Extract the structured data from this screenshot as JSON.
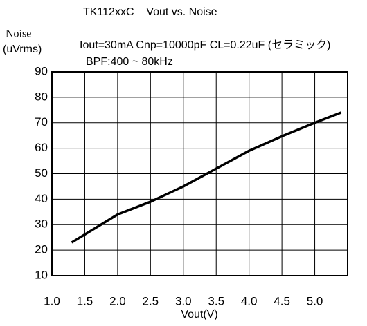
{
  "chart_data": {
    "type": "line",
    "title": "TK112xxC    Vout vs. Noise",
    "ylabel": "Noise",
    "ylabel_unit": "(uVrms)",
    "annotations": [
      "Iout=30mA Cnp=10000pF CL=0.22uF (セラミック)",
      "BPF:400 ~ 80kHz"
    ],
    "xlabel": "Vout(V)",
    "x": [
      1.3,
      2.0,
      2.5,
      3.0,
      3.5,
      4.0,
      4.5,
      5.0,
      5.4
    ],
    "values": [
      23,
      34,
      39,
      45,
      52,
      59,
      64.7,
      70,
      74
    ],
    "color": "#000000",
    "xlim": [
      1.0,
      5.5
    ],
    "xticks": [
      {
        "value": 1.0,
        "label": "1.0"
      },
      1.5,
      {
        "value": 2.0,
        "label": "2.0"
      },
      2.5,
      {
        "value": 3.0,
        "label": "3.0"
      },
      3.5,
      {
        "value": 4.0,
        "label": "4.0"
      },
      4.5,
      {
        "value": 5.0,
        "label": "5.0"
      }
    ],
    "ylim": [
      10,
      90
    ],
    "yticks": [
      10,
      20,
      30,
      40,
      50,
      60,
      70,
      80,
      90
    ],
    "grid": true
  }
}
